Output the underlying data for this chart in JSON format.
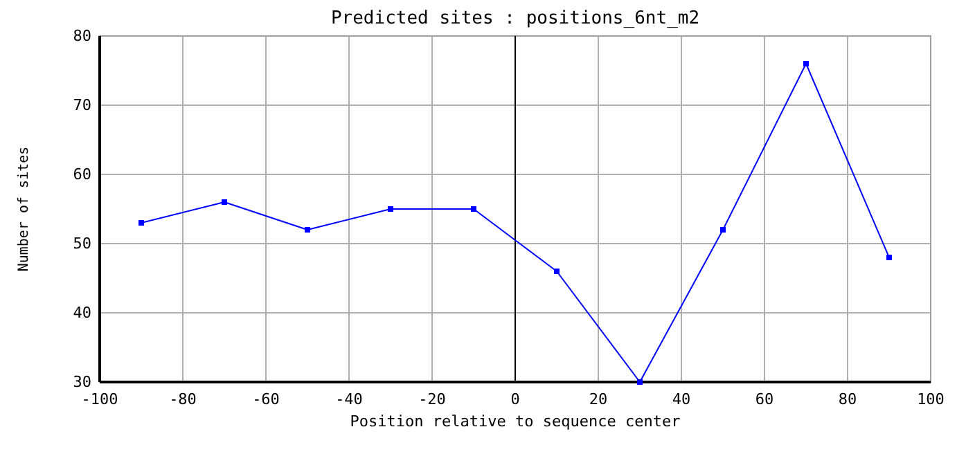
{
  "chart_data": {
    "type": "line",
    "title": "Predicted sites : positions_6nt_m2",
    "xlabel": "Position relative to sequence center",
    "ylabel": "Number of sites",
    "x": [
      -90,
      -70,
      -50,
      -30,
      -10,
      10,
      30,
      50,
      70,
      90
    ],
    "series": [
      {
        "color": "#0000ff",
        "values": [
          53,
          56,
          52,
          55,
          55,
          46,
          30,
          52,
          76,
          48
        ]
      }
    ],
    "xlim": [
      -100,
      100
    ],
    "xticks": [
      -100,
      -80,
      -60,
      -40,
      -20,
      0,
      20,
      40,
      60,
      80,
      100
    ],
    "ylim": [
      30,
      80
    ],
    "yticks": [
      30,
      40,
      50,
      60,
      70,
      80
    ],
    "grid": true,
    "marker": "square",
    "line_style": "solid",
    "ref_lines": [
      {
        "axis": "x",
        "value": 0,
        "color": "#000000"
      }
    ]
  }
}
